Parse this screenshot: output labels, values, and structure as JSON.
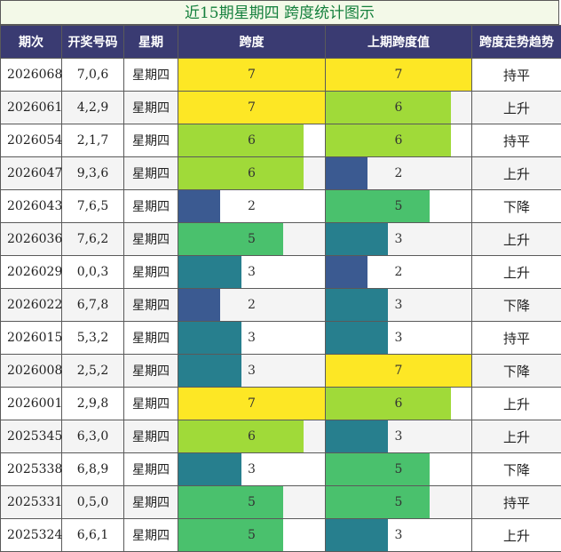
{
  "title": "近15期星期四 跨度统计图示",
  "headers": [
    "期次",
    "开奖号码",
    "星期",
    "跨度",
    "上期跨度值",
    "跨度走势趋势"
  ],
  "chart_data": {
    "type": "table",
    "title": "近15期星期四 跨度统计图示",
    "columns": [
      "期次",
      "开奖号码",
      "星期",
      "跨度",
      "上期跨度值",
      "跨度走势趋势"
    ],
    "bar_max": 7,
    "colors": {
      "7": "#fde725",
      "6": "#a0da39",
      "5": "#4ac16d",
      "3": "#277f8e",
      "2": "#3b5a91"
    },
    "rows": [
      {
        "issue": "2026068",
        "numbers": "7,0,6",
        "weekday": "星期四",
        "span": 7,
        "prev_span": 7,
        "trend": "持平"
      },
      {
        "issue": "2026061",
        "numbers": "4,2,9",
        "weekday": "星期四",
        "span": 7,
        "prev_span": 6,
        "trend": "上升"
      },
      {
        "issue": "2026054",
        "numbers": "2,1,7",
        "weekday": "星期四",
        "span": 6,
        "prev_span": 6,
        "trend": "持平"
      },
      {
        "issue": "2026047",
        "numbers": "9,3,6",
        "weekday": "星期四",
        "span": 6,
        "prev_span": 2,
        "trend": "上升"
      },
      {
        "issue": "2026043",
        "numbers": "7,6,5",
        "weekday": "星期四",
        "span": 2,
        "prev_span": 5,
        "trend": "下降"
      },
      {
        "issue": "2026036",
        "numbers": "7,6,2",
        "weekday": "星期四",
        "span": 5,
        "prev_span": 3,
        "trend": "上升"
      },
      {
        "issue": "2026029",
        "numbers": "0,0,3",
        "weekday": "星期四",
        "span": 3,
        "prev_span": 2,
        "trend": "上升"
      },
      {
        "issue": "2026022",
        "numbers": "6,7,8",
        "weekday": "星期四",
        "span": 2,
        "prev_span": 3,
        "trend": "下降"
      },
      {
        "issue": "2026015",
        "numbers": "5,3,2",
        "weekday": "星期四",
        "span": 3,
        "prev_span": 3,
        "trend": "持平"
      },
      {
        "issue": "2026008",
        "numbers": "2,5,2",
        "weekday": "星期四",
        "span": 3,
        "prev_span": 7,
        "trend": "下降"
      },
      {
        "issue": "2026001",
        "numbers": "2,9,8",
        "weekday": "星期四",
        "span": 7,
        "prev_span": 6,
        "trend": "上升"
      },
      {
        "issue": "2025345",
        "numbers": "6,3,0",
        "weekday": "星期四",
        "span": 6,
        "prev_span": 3,
        "trend": "上升"
      },
      {
        "issue": "2025338",
        "numbers": "6,8,9",
        "weekday": "星期四",
        "span": 3,
        "prev_span": 5,
        "trend": "下降"
      },
      {
        "issue": "2025331",
        "numbers": "0,5,0",
        "weekday": "星期四",
        "span": 5,
        "prev_span": 5,
        "trend": "持平"
      },
      {
        "issue": "2025324",
        "numbers": "6,6,1",
        "weekday": "星期四",
        "span": 5,
        "prev_span": 3,
        "trend": "上升"
      }
    ]
  }
}
